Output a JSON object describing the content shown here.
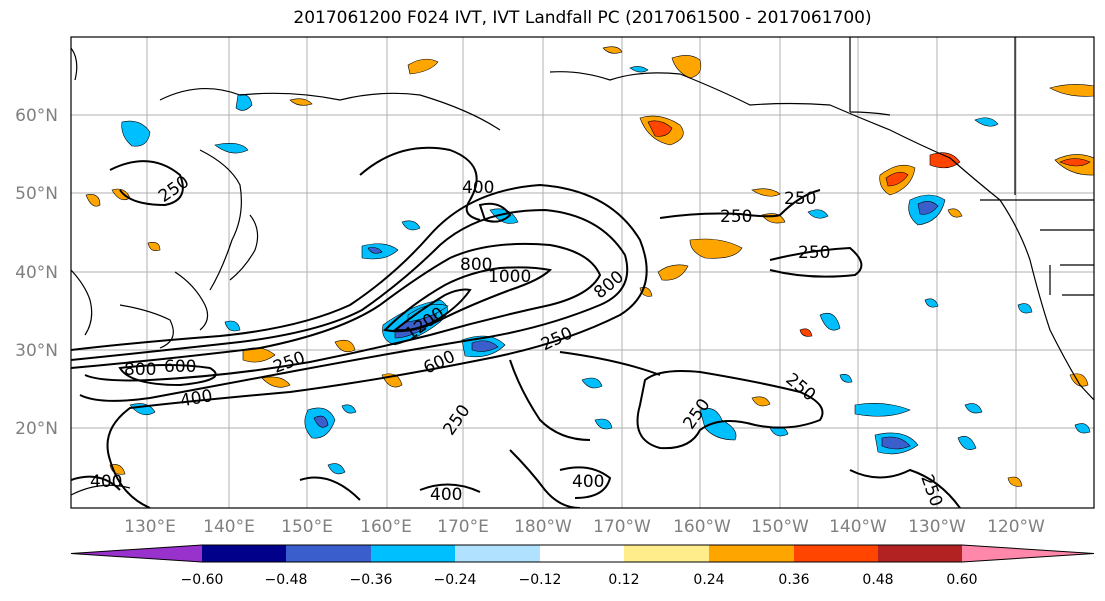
{
  "title": "2017061200 F024 IVT, IVT Landfall PC (2017061500 - 2017061700)",
  "map": {
    "lat_labels": [
      "60°N",
      "50°N",
      "40°N",
      "30°N",
      "20°N"
    ],
    "lon_labels": [
      "130°E",
      "140°E",
      "150°E",
      "160°E",
      "170°E",
      "180°W",
      "170°W",
      "160°W",
      "150°W",
      "140°W",
      "130°W",
      "120°W"
    ],
    "contour_labels": [
      "250",
      "400",
      "250",
      "250",
      "250",
      "800",
      "1000",
      "800",
      "1200",
      "600",
      "250",
      "800",
      "600",
      "250",
      "400",
      "250",
      "250",
      "250",
      "400",
      "400",
      "400",
      "250"
    ]
  },
  "colorbar": {
    "ticks": [
      "−0.60",
      "−0.48",
      "−0.36",
      "−0.24",
      "−0.12",
      "0.12",
      "0.24",
      "0.36",
      "0.48",
      "0.60"
    ],
    "colors": [
      "#9932cc",
      "#00008b",
      "#3a5fcd",
      "#00bfff",
      "#b0e2ff",
      "#ffffff",
      "#ffec8b",
      "#ffa500",
      "#ff4500",
      "#b22222",
      "#ff88aa"
    ]
  }
}
